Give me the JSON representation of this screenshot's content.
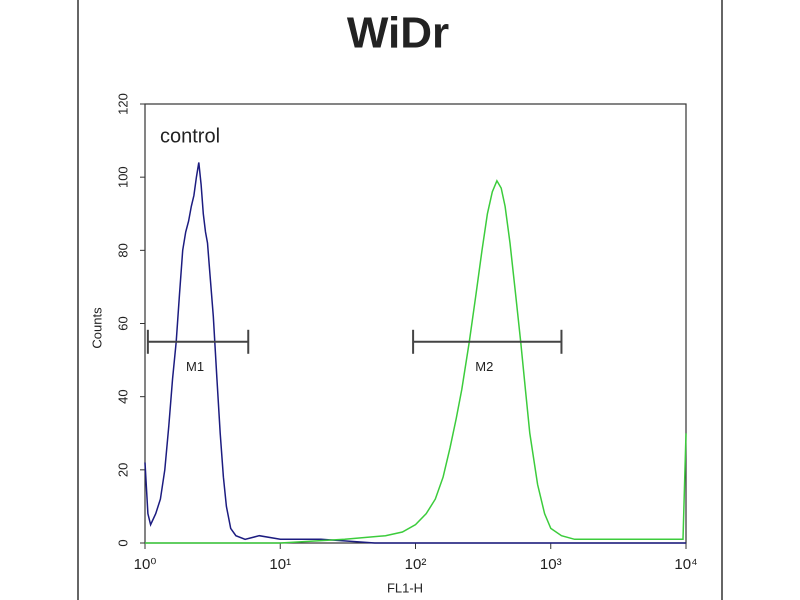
{
  "chart_data": {
    "type": "histogram-overlay",
    "title": "WiDr",
    "xlabel": "FL1-H",
    "ylabel": "Counts",
    "annotation": "control",
    "xlog": true,
    "xlim": [
      1,
      10000
    ],
    "ylim": [
      0,
      120
    ],
    "xticks": [
      {
        "value": 1,
        "label": "10⁰"
      },
      {
        "value": 10,
        "label": "10¹"
      },
      {
        "value": 100,
        "label": "10²"
      },
      {
        "value": 1000,
        "label": "10³"
      },
      {
        "value": 10000,
        "label": "10⁴"
      }
    ],
    "yticks": [
      0,
      20,
      40,
      60,
      80,
      100,
      120
    ],
    "series": [
      {
        "name": "control",
        "color": "#1c1c80",
        "x": [
          1.0,
          1.05,
          1.1,
          1.2,
          1.3,
          1.4,
          1.5,
          1.6,
          1.7,
          1.8,
          1.9,
          2.0,
          2.1,
          2.2,
          2.3,
          2.4,
          2.5,
          2.6,
          2.7,
          2.8,
          2.9,
          3.0,
          3.2,
          3.4,
          3.6,
          3.8,
          4.0,
          4.3,
          4.7,
          5.5,
          7,
          10,
          20,
          50,
          100,
          1000,
          10000
        ],
        "values": [
          22,
          8,
          5,
          8,
          12,
          20,
          32,
          45,
          55,
          68,
          80,
          85,
          88,
          92,
          95,
          100,
          104,
          98,
          90,
          85,
          82,
          75,
          62,
          45,
          30,
          18,
          10,
          4,
          2,
          1,
          2,
          1,
          1,
          0,
          0,
          0,
          0
        ]
      },
      {
        "color": "#3ccc3c",
        "x": [
          1,
          10,
          30,
          60,
          80,
          100,
          120,
          140,
          160,
          180,
          200,
          220,
          250,
          280,
          310,
          340,
          370,
          400,
          430,
          460,
          500,
          550,
          600,
          650,
          700,
          800,
          900,
          1000,
          1200,
          1500,
          3000,
          6000,
          9500,
          10000
        ],
        "values": [
          0,
          0,
          1,
          2,
          3,
          5,
          8,
          12,
          18,
          26,
          34,
          42,
          55,
          68,
          80,
          90,
          96,
          99,
          97,
          92,
          82,
          68,
          55,
          42,
          30,
          16,
          8,
          4,
          2,
          1,
          1,
          1,
          1,
          30
        ]
      }
    ],
    "markers": [
      {
        "label": "M1",
        "x": [
          1.05,
          5.8
        ],
        "y": 55
      },
      {
        "label": "M2",
        "x": [
          96,
          1200
        ],
        "y": 55
      }
    ]
  }
}
